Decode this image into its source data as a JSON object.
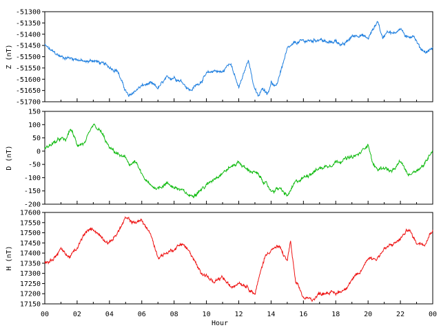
{
  "chart_data": {
    "type": "line",
    "xlabel": "Hour",
    "xlim": [
      0,
      24
    ],
    "x_ticks": [
      "00",
      "02",
      "04",
      "06",
      "08",
      "10",
      "12",
      "14",
      "16",
      "18",
      "20",
      "22",
      "00"
    ],
    "grid": false,
    "panels": [
      {
        "ylabel": "Z (nT)",
        "color": "#1f7fdf",
        "ylim": [
          -51700,
          -51300
        ],
        "y_ticks": [
          -51300,
          -51350,
          -51400,
          -51450,
          -51500,
          -51550,
          -51600,
          -51650,
          -51700
        ],
        "series": {
          "x": [
            0,
            0.5,
            1,
            1.5,
            2,
            2.5,
            3,
            3.5,
            4,
            4.5,
            4.8,
            5.2,
            5.6,
            6,
            6.5,
            7,
            7.5,
            8,
            8.5,
            9,
            9.5,
            10,
            10.5,
            11,
            11.5,
            11.8,
            12,
            12.3,
            12.6,
            12.9,
            13.2,
            13.5,
            13.8,
            14,
            14.3,
            14.6,
            15,
            15.5,
            16,
            16.5,
            17,
            17.5,
            18,
            18.5,
            19,
            19.5,
            20,
            20.3,
            20.6,
            20.9,
            21.2,
            21.6,
            22,
            22.4,
            22.8,
            23.2,
            23.6,
            24
          ],
          "y": [
            -51450,
            -51480,
            -51500,
            -51505,
            -51510,
            -51525,
            -51515,
            -51530,
            -51545,
            -51560,
            -51620,
            -51680,
            -51650,
            -51630,
            -51620,
            -51640,
            -51600,
            -51590,
            -51610,
            -51650,
            -51620,
            -51580,
            -51560,
            -51570,
            -51520,
            -51600,
            -51640,
            -51580,
            -51510,
            -51620,
            -51680,
            -51640,
            -51660,
            -51610,
            -51640,
            -51560,
            -51470,
            -51440,
            -51430,
            -51430,
            -51420,
            -51440,
            -51430,
            -51450,
            -51410,
            -51400,
            -51420,
            -51380,
            -51340,
            -51420,
            -51380,
            -51400,
            -51370,
            -51420,
            -51400,
            -51460,
            -51480,
            -51460
          ]
        }
      },
      {
        "ylabel": "D (nT)",
        "color": "#11bb11",
        "ylim": [
          -200,
          150
        ],
        "y_ticks": [
          150,
          100,
          50,
          0,
          -50,
          -100,
          -150,
          -200
        ],
        "series": {
          "x": [
            0,
            0.5,
            1,
            1.3,
            1.6,
            2,
            2.5,
            3,
            3.5,
            4,
            4.5,
            5,
            5.3,
            5.6,
            6,
            6.5,
            7,
            7.5,
            8,
            8.5,
            9,
            9.5,
            10,
            10.5,
            11,
            11.5,
            12,
            12.5,
            13,
            13.5,
            14,
            14.5,
            15,
            15.5,
            16,
            16.5,
            17,
            17.5,
            18,
            18.5,
            19,
            19.5,
            20,
            20.3,
            20.6,
            21,
            21.5,
            22,
            22.5,
            23,
            23.5,
            24
          ],
          "y": [
            10,
            30,
            45,
            40,
            85,
            25,
            30,
            95,
            70,
            10,
            -10,
            -30,
            -50,
            -40,
            -90,
            -130,
            -140,
            -120,
            -135,
            -150,
            -170,
            -150,
            -130,
            -100,
            -80,
            -60,
            -40,
            -70,
            -80,
            -110,
            -150,
            -140,
            -170,
            -120,
            -100,
            -80,
            -65,
            -55,
            -40,
            -30,
            -25,
            -10,
            30,
            -50,
            -70,
            -60,
            -80,
            -40,
            -90,
            -70,
            -50,
            10
          ]
        }
      },
      {
        "ylabel": "H (nT)",
        "color": "#ee1111",
        "ylim": [
          17150,
          17600
        ],
        "y_ticks": [
          17600,
          17550,
          17500,
          17450,
          17400,
          17350,
          17300,
          17250,
          17200,
          17150
        ],
        "series": {
          "x": [
            0,
            0.5,
            1,
            1.5,
            2,
            2.5,
            3,
            3.5,
            4,
            4.5,
            5,
            5.5,
            6,
            6.5,
            7,
            7.5,
            8,
            8.5,
            9,
            9.5,
            10,
            10.5,
            11,
            11.5,
            12,
            12.5,
            13,
            13.3,
            13.6,
            14,
            14.5,
            15,
            15.2,
            15.5,
            16,
            16.5,
            17,
            17.5,
            18,
            18.5,
            19,
            19.5,
            20,
            20.5,
            21,
            21.5,
            22,
            22.5,
            23,
            23.5,
            24
          ],
          "y": [
            17350,
            17370,
            17420,
            17380,
            17420,
            17500,
            17520,
            17480,
            17450,
            17500,
            17570,
            17550,
            17560,
            17500,
            17380,
            17400,
            17420,
            17450,
            17400,
            17320,
            17290,
            17250,
            17280,
            17230,
            17260,
            17240,
            17200,
            17290,
            17380,
            17420,
            17430,
            17360,
            17460,
            17260,
            17180,
            17170,
            17200,
            17210,
            17200,
            17220,
            17270,
            17300,
            17380,
            17370,
            17420,
            17440,
            17470,
            17520,
            17450,
            17450,
            17520
          ]
        }
      }
    ]
  }
}
